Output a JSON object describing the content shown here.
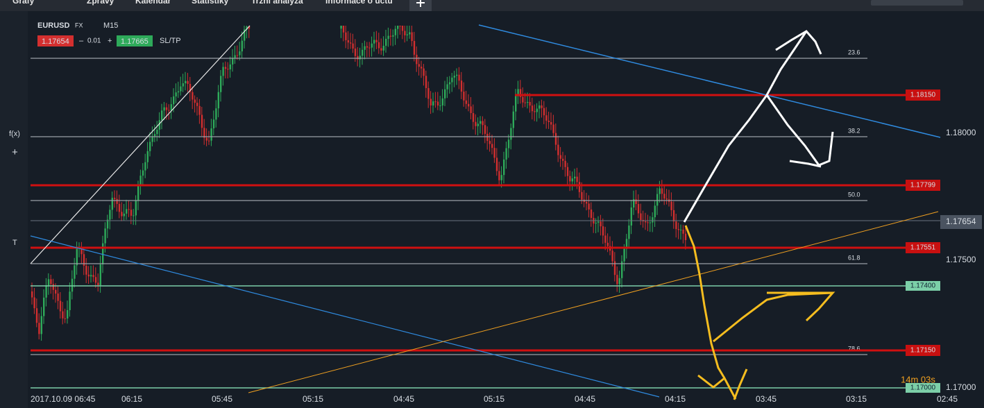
{
  "tabs": [
    "Grafy",
    "Zprávy",
    "Kalendář",
    "Statistiky",
    "Tržní analýza",
    "Informace o účtu"
  ],
  "toolbar": {
    "symbol": "EURUSD",
    "market": "FX",
    "timeframe": "M15",
    "bid": "1.17654",
    "step": "0.01",
    "ask": "1.17665",
    "sltp": "SL/TP"
  },
  "side_tools": [
    "f(x)",
    "+",
    "T"
  ],
  "fib_labels": [
    "23.6",
    "38.2",
    "50.0",
    "61.8",
    "78.6"
  ],
  "level_tags": {
    "red": [
      "1.18150",
      "1.17799",
      "1.17551",
      "1.17150"
    ],
    "green": [
      "1.17400",
      "1.17000"
    ]
  },
  "price_axis": [
    "1.18000",
    "1.17654",
    "1.17500",
    "1.17000"
  ],
  "time_axis": [
    "2017.10.09 06:45",
    "06:15",
    "05:45",
    "05:15",
    "04:45",
    "05:15",
    "04:45",
    "04:15",
    "03:45",
    "03:15",
    "02:45"
  ],
  "timer": "14m 03s"
}
